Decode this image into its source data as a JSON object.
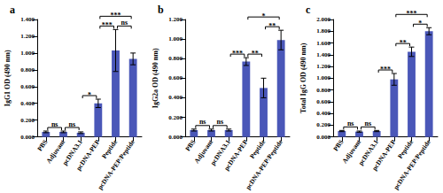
{
  "chart_data": [
    {
      "type": "bar",
      "title": "a",
      "ylabel": "IgG1 OD (490 nm)",
      "categories": [
        "PBS",
        "Adjuvant",
        "pcDNA3.1",
        "pcDNA-PEP",
        "Peptide",
        "pcDNA-PEP/Peptide"
      ],
      "values": [
        0.06,
        0.06,
        0.05,
        0.4,
        1.03,
        0.93
      ],
      "errors": [
        0.01,
        0.01,
        0.01,
        0.05,
        0.25,
        0.07
      ],
      "color": "#4a57b8",
      "grid": false,
      "ylim": [
        0,
        1.4
      ],
      "yticks": [
        {
          "value": 0,
          "label": "0.000"
        },
        {
          "value": 0.2,
          "label": "0.200"
        },
        {
          "value": 0.4,
          "label": "0.400"
        },
        {
          "value": 0.6,
          "label": "0.600"
        },
        {
          "value": 0.8,
          "label": "0.800"
        },
        {
          "value": 1.0,
          "label": "1.000"
        },
        {
          "value": 1.2,
          "label": "1.200"
        },
        {
          "value": 1.4,
          "label": "1.400"
        }
      ],
      "comparisons": [
        {
          "from": "PBS",
          "to": "Adjuvant",
          "label": "ns"
        },
        {
          "from": "Adjuvant",
          "to": "pcDNA3.1",
          "label": "ns"
        },
        {
          "from": "pcDNA3.1",
          "to": "pcDNA-PEP",
          "label": "*"
        },
        {
          "from": "pcDNA-PEP",
          "to": "Peptide",
          "label": "***"
        },
        {
          "from": "Peptide",
          "to": "pcDNA-PEP/Peptide",
          "label": "ns"
        },
        {
          "from": "pcDNA-PEP",
          "to": "pcDNA-PEP/Peptide",
          "label": "***"
        }
      ]
    },
    {
      "type": "bar",
      "title": "b",
      "ylabel": "IgG2a OD (490 nm)",
      "categories": [
        "PBS",
        "Adjuvant",
        "pcDNA3.1",
        "pcDNA-PEP",
        "Peptide",
        "pcDNA-PEP/Peptide"
      ],
      "values": [
        0.07,
        0.07,
        0.07,
        0.77,
        0.5,
        0.99
      ],
      "errors": [
        0.01,
        0.01,
        0.01,
        0.04,
        0.1,
        0.1
      ],
      "color": "#4a57b8",
      "grid": false,
      "ylim": [
        0,
        1.2
      ],
      "yticks": [
        {
          "value": 0,
          "label": "0.000"
        },
        {
          "value": 0.2,
          "label": "0.200"
        },
        {
          "value": 0.4,
          "label": "0.400"
        },
        {
          "value": 0.6,
          "label": "0.600"
        },
        {
          "value": 0.8,
          "label": "0.800"
        },
        {
          "value": 1.0,
          "label": "1.000"
        },
        {
          "value": 1.2,
          "label": "1.200"
        }
      ],
      "comparisons": [
        {
          "from": "PBS",
          "to": "Adjuvant",
          "label": "ns"
        },
        {
          "from": "Adjuvant",
          "to": "pcDNA3.1",
          "label": "ns"
        },
        {
          "from": "pcDNA3.1",
          "to": "pcDNA-PEP",
          "label": "***"
        },
        {
          "from": "pcDNA-PEP",
          "to": "Peptide",
          "label": "**"
        },
        {
          "from": "Peptide",
          "to": "pcDNA-PEP/Peptide",
          "label": "**"
        },
        {
          "from": "pcDNA-PEP",
          "to": "pcDNA-PEP/Peptide",
          "label": "*"
        }
      ]
    },
    {
      "type": "bar",
      "title": "c",
      "ylabel": "Total IgG OD (490 nm)",
      "categories": [
        "PBS",
        "Adjuvant",
        "pcDNA3.1",
        "pcDNA-PEP",
        "Peptide",
        "pcDNA-PEP/Peptide"
      ],
      "values": [
        0.1,
        0.09,
        0.1,
        0.98,
        1.45,
        1.8
      ],
      "errors": [
        0.01,
        0.01,
        0.01,
        0.1,
        0.08,
        0.06
      ],
      "color": "#4a57b8",
      "grid": false,
      "ylim": [
        0,
        2.0
      ],
      "yticks": [
        {
          "value": 0,
          "label": "0.000"
        },
        {
          "value": 0.2,
          "label": "0.200"
        },
        {
          "value": 0.4,
          "label": "0.400"
        },
        {
          "value": 0.6,
          "label": "0.600"
        },
        {
          "value": 0.8,
          "label": "0.800"
        },
        {
          "value": 1.0,
          "label": "1.000"
        },
        {
          "value": 1.2,
          "label": "1.200"
        },
        {
          "value": 1.4,
          "label": "1.400"
        },
        {
          "value": 1.6,
          "label": "1.600"
        },
        {
          "value": 1.8,
          "label": "1.800"
        },
        {
          "value": 2.0,
          "label": "2.000"
        }
      ],
      "comparisons": [
        {
          "from": "PBS",
          "to": "Adjuvant",
          "label": "ns"
        },
        {
          "from": "Adjuvant",
          "to": "pcDNA3.1",
          "label": "ns"
        },
        {
          "from": "pcDNA3.1",
          "to": "pcDNA-PEP",
          "label": "***"
        },
        {
          "from": "pcDNA-PEP",
          "to": "Peptide",
          "label": "**"
        },
        {
          "from": "Peptide",
          "to": "pcDNA-PEP/Peptide",
          "label": "*"
        },
        {
          "from": "pcDNA-PEP",
          "to": "pcDNA-PEP/Peptide",
          "label": "***"
        }
      ]
    }
  ]
}
